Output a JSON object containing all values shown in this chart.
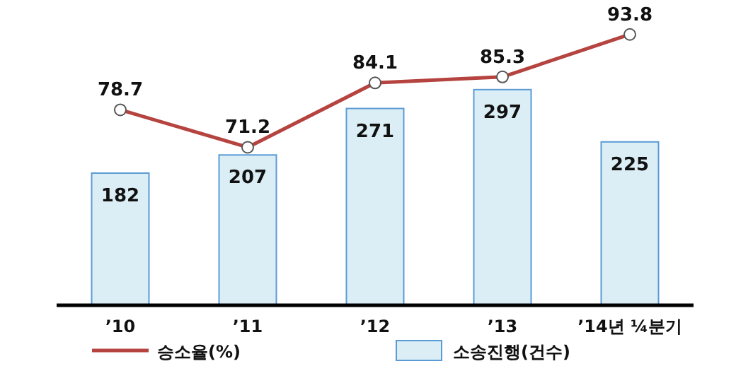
{
  "chart_data": {
    "type": "bar",
    "categories": [
      "’10",
      "’11",
      "’12",
      "’13",
      "’14년 ¼분기"
    ],
    "series": [
      {
        "name": "소송진행(건수)",
        "color": "#dbeef6",
        "values": [
          182,
          207,
          271,
          297,
          225
        ]
      },
      {
        "name": "승소율(%)",
        "type": "line",
        "axis": "y2",
        "color": "#b5433f",
        "marker": "circle",
        "values": [
          78.7,
          71.2,
          84.1,
          85.3,
          93.8
        ]
      }
    ],
    "tick_labels": "x",
    "legend": "bottom",
    "data_labels": true
  }
}
